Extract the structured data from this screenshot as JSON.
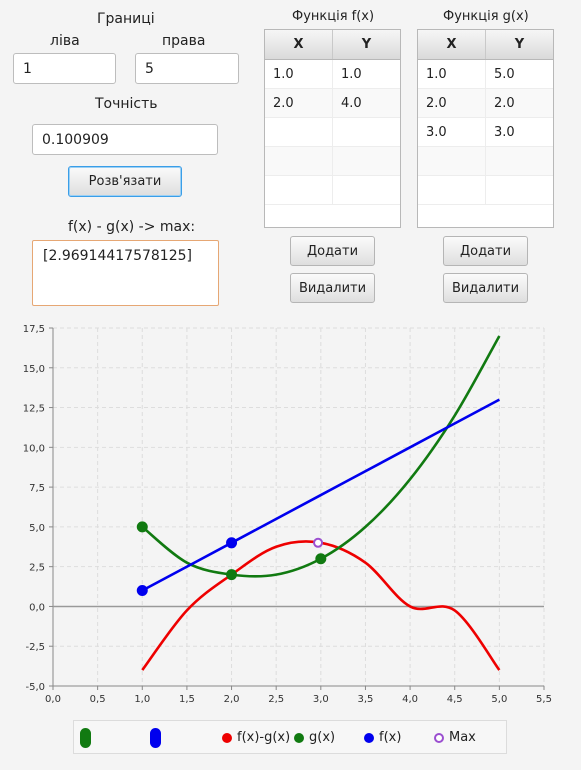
{
  "bounds": {
    "title": "Границі",
    "left_label": "ліва",
    "right_label": "права",
    "left_value": "1",
    "right_value": "5"
  },
  "precision": {
    "label": "Точність",
    "value": "0.100909"
  },
  "solve_button": "Розв'язати",
  "result": {
    "label": "f(x) - g(x) -> max:",
    "value": "[2.96914417578125]"
  },
  "table_f": {
    "title": "Функція f(x)",
    "columns": [
      "X",
      "Y"
    ],
    "rows": [
      [
        "1.0",
        "1.0"
      ],
      [
        "2.0",
        "4.0"
      ],
      [
        "",
        ""
      ],
      [
        "",
        ""
      ],
      [
        "",
        ""
      ]
    ]
  },
  "table_g": {
    "title": "Функція g(x)",
    "columns": [
      "X",
      "Y"
    ],
    "rows": [
      [
        "1.0",
        "5.0"
      ],
      [
        "2.0",
        "2.0"
      ],
      [
        "3.0",
        "3.0"
      ],
      [
        "",
        ""
      ],
      [
        "",
        ""
      ]
    ]
  },
  "buttons_f": {
    "add": "Додати",
    "remove": "Видалити"
  },
  "buttons_g": {
    "add": "Додати",
    "remove": "Видалити"
  },
  "colors": {
    "diff": "#ee0000",
    "g": "#117a11",
    "f": "#0000ee",
    "max": "#9b4fd0",
    "axis": "#999999",
    "grid": "#dddddd"
  },
  "chart_data": {
    "type": "line",
    "xlim": [
      0.0,
      5.5
    ],
    "ylim": [
      -5.0,
      17.5
    ],
    "grid": true,
    "legend_position": "bottom",
    "x_ticks": [
      "0,0",
      "0,5",
      "1,0",
      "1,5",
      "2,0",
      "2,5",
      "3,0",
      "3,5",
      "4,0",
      "4,5",
      "5,0",
      "5,5"
    ],
    "y_ticks": [
      "-5,0",
      "-2,5",
      "0,0",
      "2,5",
      "5,0",
      "7,5",
      "10,0",
      "12,5",
      "15,0",
      "17,5"
    ],
    "series": [
      {
        "name": "f(x)-g(x)",
        "color": "#ee0000",
        "x": [
          1.0,
          1.5,
          2.0,
          2.5,
          3.0,
          3.5,
          4.0,
          4.5,
          5.0
        ],
        "y": [
          -4.0,
          -0.25,
          2.0,
          3.75,
          4.0,
          2.75,
          0.0,
          -0.25,
          -4.0
        ]
      },
      {
        "name": "g(x)",
        "color": "#117a11",
        "x": [
          1.0,
          1.5,
          2.0,
          2.5,
          3.0,
          3.5,
          4.0,
          4.5,
          5.0
        ],
        "y": [
          5.0,
          2.75,
          2.0,
          2.0,
          3.0,
          5.0,
          8.0,
          12.0,
          17.0
        ]
      },
      {
        "name": "f(x)",
        "color": "#0000ee",
        "x": [
          1.0,
          2.0,
          3.0,
          4.0,
          5.0
        ],
        "y": [
          1.0,
          4.0,
          7.0,
          10.0,
          13.0
        ]
      }
    ],
    "points": [
      {
        "series": "g(x)",
        "x": [
          1.0,
          2.0,
          3.0
        ],
        "y": [
          5.0,
          2.0,
          3.0
        ]
      },
      {
        "series": "f(x)",
        "x": [
          1.0,
          2.0
        ],
        "y": [
          1.0,
          4.0
        ]
      },
      {
        "series": "Max",
        "x": [
          2.969
        ],
        "y": [
          4.0
        ]
      }
    ],
    "legend": [
      "f(x)-g(x)",
      "g(x)",
      "f(x)",
      "Max"
    ]
  }
}
